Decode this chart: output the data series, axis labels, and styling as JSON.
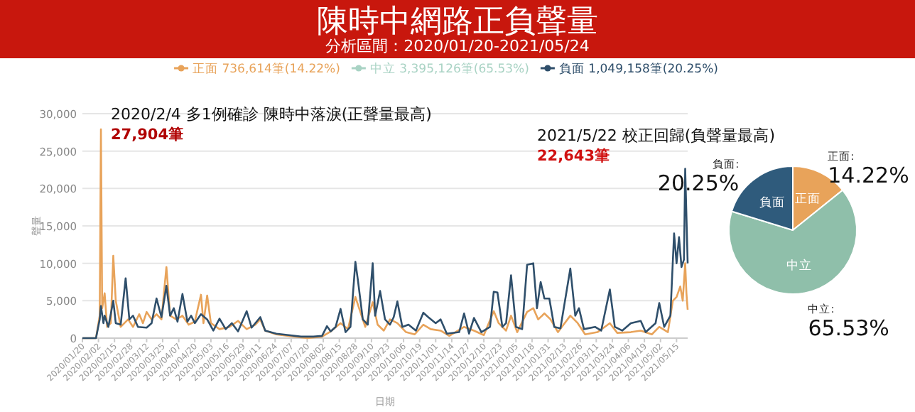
{
  "chart_data": [
    {
      "type": "line",
      "title": "陳時中網路正負聲量",
      "subtitle": "分析區間：2020/01/20-2021/05/24",
      "xlabel": "日期",
      "ylabel": "聲量",
      "annotations": [
        "2020/2/4 多1例確診 陳時中落淚(正聲量最高)",
        "27,904筆",
        "2021/5/22 校正回歸(負聲量最高)",
        "22,643筆"
      ],
      "legend": "top",
      "grid": "y",
      "marker": "none",
      "line_style": "solid",
      "xlim": [
        "2020-01-20",
        "2021-05-24"
      ],
      "xticks": [
        {
          "value": "2020-01-20",
          "label": "2020/01/20"
        },
        {
          "value": "2020-02-02",
          "label": "2020/02/02"
        },
        {
          "value": "2020-02-15",
          "label": "2020/02/15"
        },
        {
          "value": "2020-02-28",
          "label": "2020/02/28"
        },
        {
          "value": "2020-03-12",
          "label": "2020/03/12"
        },
        {
          "value": "2020-03-25",
          "label": "2020/03/25"
        },
        {
          "value": "2020-04-07",
          "label": "2020/04/07"
        },
        {
          "value": "2020-04-20",
          "label": "2020/04/20"
        },
        {
          "value": "2020-05-03",
          "label": "2020/05/03"
        },
        {
          "value": "2020-05-16",
          "label": "2020/05/16"
        },
        {
          "value": "2020-05-29",
          "label": "2020/05/29"
        },
        {
          "value": "2020-06-11",
          "label": "2020/06/11"
        },
        {
          "value": "2020-06-24",
          "label": "2020/06/24"
        },
        {
          "value": "2020-07-07",
          "label": "2020/07/07"
        },
        {
          "value": "2020-07-20",
          "label": "2020/07/20"
        },
        {
          "value": "2020-08-02",
          "label": "2020/08/02"
        },
        {
          "value": "2020-08-15",
          "label": "2020/08/15"
        },
        {
          "value": "2020-08-28",
          "label": "2020/08/28"
        },
        {
          "value": "2020-09-10",
          "label": "2020/09/10"
        },
        {
          "value": "2020-09-23",
          "label": "2020/09/23"
        },
        {
          "value": "2020-10-06",
          "label": "2020/10/06"
        },
        {
          "value": "2020-10-19",
          "label": "2020/10/19"
        },
        {
          "value": "2020-11-01",
          "label": "2020/11/01"
        },
        {
          "value": "2020-11-14",
          "label": "2020/11/14"
        },
        {
          "value": "2020-11-27",
          "label": "2020/11/27"
        },
        {
          "value": "2020-12-10",
          "label": "2020/12/10"
        },
        {
          "value": "2020-12-23",
          "label": "2020/12/23"
        },
        {
          "value": "2021-01-05",
          "label": "2021/01/05"
        },
        {
          "value": "2021-01-18",
          "label": "2021/01/18"
        },
        {
          "value": "2021-01-31",
          "label": "2021/01/31"
        },
        {
          "value": "2021-02-13",
          "label": "2021/02/13"
        },
        {
          "value": "2021-02-26",
          "label": "2021/02/26"
        },
        {
          "value": "2021-03-11",
          "label": "2021/03/11"
        },
        {
          "value": "2021-03-24",
          "label": "2021/03/24"
        },
        {
          "value": "2021-04-06",
          "label": "2021/04/06"
        },
        {
          "value": "2021-04-19",
          "label": "2021/04/19"
        },
        {
          "value": "2021-05-02",
          "label": "2021/05/02"
        },
        {
          "value": "2021-05-15",
          "label": "2021/05/15"
        }
      ],
      "ylim": [
        0,
        30000
      ],
      "yticks": [
        0,
        {
          "value": 5000,
          "label": "5,000"
        },
        {
          "value": 10000,
          "label": "10,000"
        },
        {
          "value": 15000,
          "label": "15,000"
        },
        {
          "value": 20000,
          "label": "20,000"
        },
        {
          "value": 25000,
          "label": "25,000"
        },
        {
          "value": 30000,
          "label": "30,000"
        }
      ],
      "series": [
        {
          "name": "正面 736,614筆(14.22%)",
          "color": "#e8a35a",
          "x": [
            "2020-01-20",
            "2020-01-31",
            "2020-02-03",
            "2020-02-04",
            "2020-02-05",
            "2020-02-07",
            "2020-02-09",
            "2020-02-12",
            "2020-02-14",
            "2020-02-16",
            "2020-02-20",
            "2020-02-26",
            "2020-03-01",
            "2020-03-06",
            "2020-03-09",
            "2020-03-12",
            "2020-03-16",
            "2020-03-20",
            "2020-03-24",
            "2020-03-28",
            "2020-03-31",
            "2020-04-05",
            "2020-04-10",
            "2020-04-15",
            "2020-04-20",
            "2020-04-25",
            "2020-04-27",
            "2020-04-30",
            "2020-05-03",
            "2020-05-10",
            "2020-05-18",
            "2020-05-25",
            "2020-06-01",
            "2020-06-08",
            "2020-06-12",
            "2020-06-16",
            "2020-06-25",
            "2020-07-05",
            "2020-07-20",
            "2020-08-01",
            "2020-08-08",
            "2020-08-16",
            "2020-08-22",
            "2020-08-28",
            "2020-09-01",
            "2020-09-05",
            "2020-09-11",
            "2020-09-15",
            "2020-09-20",
            "2020-09-25",
            "2020-10-01",
            "2020-10-08",
            "2020-10-15",
            "2020-10-22",
            "2020-10-28",
            "2020-11-05",
            "2020-11-12",
            "2020-11-24",
            "2020-12-02",
            "2020-12-10",
            "2020-12-18",
            "2020-12-22",
            "2020-12-28",
            "2021-01-01",
            "2021-01-06",
            "2021-01-14",
            "2021-01-19",
            "2021-01-23",
            "2021-01-28",
            "2021-02-02",
            "2021-02-08",
            "2021-02-18",
            "2021-02-24",
            "2021-03-02",
            "2021-03-12",
            "2021-03-22",
            "2021-03-28",
            "2021-04-08",
            "2021-04-16",
            "2021-04-25",
            "2021-05-01",
            "2021-05-08",
            "2021-05-12",
            "2021-05-15",
            "2021-05-18",
            "2021-05-20",
            "2021-05-22",
            "2021-05-23",
            "2021-05-24"
          ],
          "values": [
            0,
            0,
            3000,
            27904,
            4000,
            6000,
            1500,
            2000,
            11000,
            5000,
            1500,
            2500,
            1500,
            3200,
            2000,
            3500,
            2500,
            3200,
            2500,
            9500,
            3000,
            2500,
            3000,
            1800,
            2200,
            5800,
            2000,
            5700,
            2000,
            1200,
            1500,
            2300,
            1200,
            1800,
            2500,
            1000,
            500,
            300,
            0,
            200,
            900,
            2000,
            1200,
            5500,
            3500,
            1500,
            4800,
            1800,
            1000,
            2500,
            2000,
            800,
            500,
            1800,
            1200,
            1000,
            300,
            1500,
            1000,
            400,
            3600,
            2000,
            1000,
            3000,
            800,
            3500,
            4000,
            2500,
            3300,
            2500,
            800,
            3000,
            2000,
            500,
            800,
            2000,
            700,
            800,
            1000,
            500,
            1500,
            800,
            5000,
            5500,
            6900,
            5000,
            10000,
            6000,
            3800
          ]
        },
        {
          "name": "中立 3,395,126筆(65.53%)",
          "color": "#a9d3c4"
        },
        {
          "name": "負面 1,049,158筆(20.25%)",
          "color": "#2f4f6b",
          "x": [
            "2020-01-20",
            "2020-01-31",
            "2020-02-03",
            "2020-02-04",
            "2020-02-06",
            "2020-02-07",
            "2020-02-10",
            "2020-02-14",
            "2020-02-16",
            "2020-02-20",
            "2020-02-24",
            "2020-02-27",
            "2020-03-01",
            "2020-03-05",
            "2020-03-12",
            "2020-03-16",
            "2020-03-20",
            "2020-03-24",
            "2020-03-28",
            "2020-03-31",
            "2020-04-03",
            "2020-04-06",
            "2020-04-10",
            "2020-04-14",
            "2020-04-17",
            "2020-04-20",
            "2020-04-25",
            "2020-04-30",
            "2020-05-05",
            "2020-05-10",
            "2020-05-15",
            "2020-05-20",
            "2020-05-25",
            "2020-06-01",
            "2020-06-05",
            "2020-06-12",
            "2020-06-16",
            "2020-06-25",
            "2020-07-05",
            "2020-07-15",
            "2020-07-25",
            "2020-08-01",
            "2020-08-05",
            "2020-08-08",
            "2020-08-12",
            "2020-08-16",
            "2020-08-20",
            "2020-08-24",
            "2020-08-28",
            "2020-08-30",
            "2020-09-03",
            "2020-09-07",
            "2020-09-11",
            "2020-09-13",
            "2020-09-17",
            "2020-09-21",
            "2020-09-25",
            "2020-09-28",
            "2020-10-01",
            "2020-10-05",
            "2020-10-10",
            "2020-10-16",
            "2020-10-22",
            "2020-10-26",
            "2020-11-01",
            "2020-11-05",
            "2020-11-10",
            "2020-11-20",
            "2020-11-24",
            "2020-11-28",
            "2020-12-02",
            "2020-12-08",
            "2020-12-15",
            "2020-12-18",
            "2020-12-21",
            "2020-12-25",
            "2020-12-28",
            "2021-01-01",
            "2021-01-05",
            "2021-01-10",
            "2021-01-14",
            "2021-01-19",
            "2021-01-22",
            "2021-01-25",
            "2021-01-28",
            "2021-02-01",
            "2021-02-05",
            "2021-02-10",
            "2021-02-18",
            "2021-02-22",
            "2021-02-25",
            "2021-03-01",
            "2021-03-10",
            "2021-03-15",
            "2021-03-22",
            "2021-03-26",
            "2021-04-01",
            "2021-04-08",
            "2021-04-16",
            "2021-04-20",
            "2021-04-28",
            "2021-05-01",
            "2021-05-05",
            "2021-05-10",
            "2021-05-13",
            "2021-05-15",
            "2021-05-17",
            "2021-05-19",
            "2021-05-21",
            "2021-05-22",
            "2021-05-24"
          ],
          "values": [
            0,
            0,
            2500,
            4300,
            2000,
            3000,
            1500,
            5000,
            2000,
            1800,
            8000,
            2500,
            3000,
            1500,
            1400,
            2000,
            5300,
            2800,
            7000,
            3000,
            4000,
            2200,
            5900,
            2200,
            3000,
            2000,
            3200,
            2500,
            1000,
            2600,
            1200,
            2000,
            900,
            3600,
            1400,
            2800,
            1000,
            600,
            400,
            200,
            200,
            300,
            1600,
            900,
            1500,
            3900,
            800,
            1500,
            10200,
            7800,
            2500,
            1800,
            10000,
            3000,
            6300,
            2500,
            1800,
            2800,
            4900,
            1500,
            1800,
            1000,
            3400,
            2800,
            2000,
            2500,
            600,
            800,
            3300,
            600,
            2700,
            800,
            1500,
            6200,
            6100,
            1500,
            2000,
            8400,
            1500,
            1200,
            9800,
            10000,
            4000,
            7500,
            5300,
            5300,
            1500,
            1300,
            9300,
            3000,
            4000,
            1200,
            1500,
            1000,
            6500,
            1500,
            1000,
            2000,
            2300,
            800,
            2000,
            4700,
            1500,
            3000,
            14000,
            10000,
            13500,
            9500,
            10500,
            22643,
            10000
          ]
        }
      ]
    },
    {
      "type": "pie",
      "categories": [
        "正面",
        "中立",
        "負面"
      ],
      "annotations": [
        "正面:",
        "中立:",
        "負面:"
      ],
      "values": [
        14.22,
        65.53,
        20.25
      ],
      "colors": [
        "#e8a35a",
        "#8fbfaa",
        "#2f5b7c"
      ],
      "value_labels": [
        "14.22%",
        "65.53%",
        "20.25%"
      ]
    }
  ]
}
